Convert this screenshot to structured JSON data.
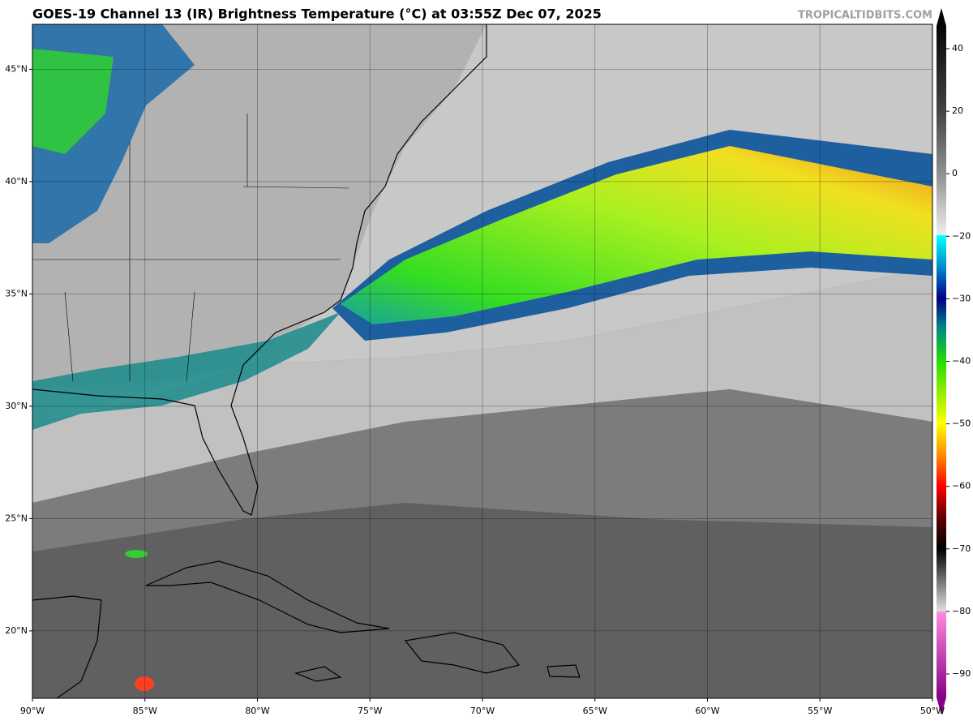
{
  "header": {
    "title": "GOES-19 Channel 13 (IR) Brightness Temperature (°C) at 03:55Z Dec 07, 2025",
    "credit": "TROPICALTIDBITS.COM"
  },
  "map": {
    "lonlim": [
      -90,
      -50
    ],
    "latlim": [
      17,
      47
    ],
    "grid": true,
    "lon_ticks": [
      {
        "value": -90,
        "label": "90°W"
      },
      {
        "value": -85,
        "label": "85°W"
      },
      {
        "value": -80,
        "label": "80°W"
      },
      {
        "value": -75,
        "label": "75°W"
      },
      {
        "value": -70,
        "label": "70°W"
      },
      {
        "value": -65,
        "label": "65°W"
      },
      {
        "value": -60,
        "label": "60°W"
      },
      {
        "value": -55,
        "label": "55°W"
      },
      {
        "value": -50,
        "label": "50°W"
      }
    ],
    "lat_ticks": [
      {
        "value": 20,
        "label": "20°N"
      },
      {
        "value": 25,
        "label": "25°N"
      },
      {
        "value": 30,
        "label": "30°N"
      },
      {
        "value": 35,
        "label": "35°N"
      },
      {
        "value": 40,
        "label": "40°N"
      },
      {
        "value": 45,
        "label": "45°N"
      }
    ]
  },
  "colorbar": {
    "ticks": [
      40,
      20,
      0,
      {
        "value": -20,
        "label": "−20"
      },
      {
        "value": -30,
        "label": "−30"
      },
      {
        "value": -40,
        "label": "−40"
      },
      {
        "value": -50,
        "label": "−50"
      },
      {
        "value": -60,
        "label": "−60"
      },
      {
        "value": -70,
        "label": "−70"
      },
      {
        "value": -80,
        "label": "−80"
      },
      {
        "value": -90,
        "label": "−90"
      }
    ]
  }
}
